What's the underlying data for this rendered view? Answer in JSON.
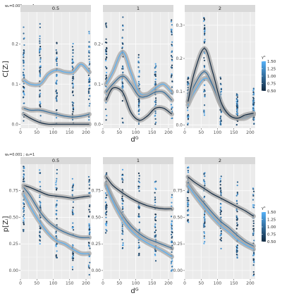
{
  "chart_data": [
    {
      "type": "scatter",
      "subtitle": "w₀=0.001 ; α₀=1",
      "ylabel": "C[Zᵢ]",
      "xlabel": "dᴳ",
      "xlim": [
        0,
        215
      ],
      "xticks": [
        0,
        50,
        100,
        150,
        200
      ],
      "legend": {
        "title": "γᴳ",
        "ticks": [
          1.5,
          1.25,
          1.0,
          0.75,
          0.5
        ],
        "range": [
          0.5,
          1.5
        ],
        "position": "right"
      },
      "panels": [
        {
          "label": "0.5",
          "ylim": [
            -0.01,
            0.28
          ],
          "yticks": [
            0.0,
            0.1,
            0.2
          ],
          "ytick_labels": [
            "0.0",
            "0.1",
            "0.2"
          ],
          "x_values": [
            10,
            60,
            110,
            160,
            210
          ],
          "scatter_ranges": [
            [
              0.0,
              0.26
            ],
            [
              0.0,
              0.26
            ],
            [
              0.0,
              0.22
            ],
            [
              0.0,
              0.21
            ],
            [
              0.0,
              0.24
            ]
          ],
          "series": [
            {
              "gamma": 1.5,
              "x": [
                10,
                30,
                60,
                85,
                110,
                135,
                160,
                185,
                210
              ],
              "y": [
                0.11,
                0.1,
                0.1,
                0.125,
                0.135,
                0.13,
                0.13,
                0.15,
                0.13
              ]
            },
            {
              "gamma": 1.0,
              "x": [
                10,
                30,
                60,
                85,
                110,
                135,
                160,
                185,
                210
              ],
              "y": [
                0.04,
                0.035,
                0.035,
                0.03,
                0.025,
                0.02,
                0.018,
                0.02,
                0.025
              ]
            },
            {
              "gamma": 0.5,
              "x": [
                10,
                30,
                60,
                85,
                110,
                135,
                160,
                185,
                210
              ],
              "y": [
                0.025,
                0.015,
                0.004,
                0.0,
                0.0,
                0.0,
                0.0,
                0.0,
                0.0
              ]
            }
          ]
        },
        {
          "label": "1",
          "ylim": [
            -0.01,
            0.28
          ],
          "yticks": [
            0.0,
            0.1,
            0.2
          ],
          "ytick_labels": [
            "0.0",
            "0.1",
            "0.2"
          ],
          "x_values": [
            10,
            60,
            110,
            160,
            210
          ],
          "scatter_ranges": [
            [
              0.0,
              0.26
            ],
            [
              0.0,
              0.27
            ],
            [
              0.0,
              0.18
            ],
            [
              0.0,
              0.17
            ],
            [
              0.0,
              0.26
            ]
          ],
          "series": [
            {
              "gamma": 1.5,
              "x": [
                10,
                30,
                60,
                85,
                110,
                135,
                160,
                185,
                210
              ],
              "y": [
                0.1,
                0.13,
                0.18,
                0.13,
                0.08,
                0.075,
                0.09,
                0.1,
                0.08
              ]
            },
            {
              "gamma": 1.0,
              "x": [
                10,
                30,
                60,
                85,
                110,
                135,
                160,
                185,
                210
              ],
              "y": [
                0.08,
                0.1,
                0.12,
                0.1,
                0.07,
                0.07,
                0.08,
                0.08,
                0.06
              ]
            },
            {
              "gamma": 0.5,
              "x": [
                10,
                30,
                60,
                85,
                110,
                135,
                160,
                185,
                210
              ],
              "y": [
                0.06,
                0.09,
                0.08,
                0.03,
                0.01,
                0.02,
                0.04,
                0.04,
                0.025
              ]
            }
          ]
        },
        {
          "label": "2",
          "ylim": [
            -0.01,
            0.34
          ],
          "yticks": [
            0.0,
            0.1,
            0.2,
            0.3
          ],
          "ytick_labels": [
            "0.0",
            "0.1",
            "0.2",
            "0.3"
          ],
          "x_values": [
            10,
            60,
            110,
            160,
            210
          ],
          "scatter_ranges": [
            [
              0.0,
              0.15
            ],
            [
              0.0,
              0.33
            ],
            [
              0.0,
              0.15
            ],
            [
              0.0,
              0.1
            ],
            [
              0.0,
              0.11
            ]
          ],
          "series": [
            {
              "gamma": 1.5,
              "x": [
                10,
                30,
                60,
                85,
                110,
                135,
                160,
                185,
                210
              ],
              "y": [
                0.06,
                0.1,
                0.14,
                0.12,
                0.06,
                0.03,
                0.02,
                0.02,
                0.035
              ]
            },
            {
              "gamma": 1.0,
              "x": [
                10,
                30,
                60,
                85,
                110,
                135,
                160,
                185,
                210
              ],
              "y": [
                0.07,
                0.12,
                0.16,
                0.12,
                0.06,
                0.03,
                0.02,
                0.025,
                0.03
              ]
            },
            {
              "gamma": 0.5,
              "x": [
                10,
                30,
                60,
                85,
                110,
                135,
                160,
                185,
                210
              ],
              "y": [
                0.07,
                0.16,
                0.23,
                0.16,
                0.07,
                0.03,
                0.02,
                0.03,
                0.035
              ]
            }
          ]
        }
      ]
    },
    {
      "type": "scatter",
      "subtitle": "w₀=0.001 ; α₀=1",
      "ylabel": "p[Zᵢ]",
      "xlabel": "dᴳ",
      "xlim": [
        0,
        215
      ],
      "xticks": [
        0,
        50,
        100,
        150,
        200
      ],
      "legend": {
        "title": "γᴳ",
        "ticks": [
          1.5,
          1.25,
          1.0,
          0.75,
          0.5
        ],
        "range": [
          0.5,
          1.5
        ],
        "position": "right"
      },
      "panels": [
        {
          "label": "0.5",
          "ylim": [
            -0.08,
            1.0
          ],
          "yticks": [
            0.0,
            0.25,
            0.5,
            0.75
          ],
          "ytick_labels": [
            "0.00",
            "0.25",
            "0.50",
            "0.75"
          ],
          "x_values": [
            10,
            60,
            110,
            160,
            210
          ],
          "scatter_ranges": [
            [
              0.35,
              0.98
            ],
            [
              0.25,
              0.98
            ],
            [
              0.1,
              0.95
            ],
            [
              0.0,
              0.92
            ],
            [
              -0.05,
              0.9
            ]
          ],
          "series": [
            {
              "gamma": 0.5,
              "x": [
                10,
                30,
                60,
                85,
                110,
                135,
                160,
                185,
                210
              ],
              "y": [
                0.8,
                0.78,
                0.74,
                0.71,
                0.7,
                0.69,
                0.68,
                0.69,
                0.7
              ]
            },
            {
              "gamma": 1.0,
              "x": [
                10,
                30,
                60,
                85,
                110,
                135,
                160,
                185,
                210
              ],
              "y": [
                0.78,
                0.7,
                0.55,
                0.46,
                0.4,
                0.36,
                0.33,
                0.31,
                0.31
              ]
            },
            {
              "gamma": 1.5,
              "x": [
                10,
                30,
                60,
                85,
                110,
                135,
                160,
                185,
                210
              ],
              "y": [
                0.72,
                0.6,
                0.45,
                0.35,
                0.28,
                0.25,
                0.2,
                0.16,
                0.16
              ]
            }
          ]
        },
        {
          "label": "1",
          "ylim": [
            -0.08,
            1.0
          ],
          "yticks": [
            0.0,
            0.25,
            0.5,
            0.75
          ],
          "ytick_labels": [
            "0.00",
            "0.25",
            "0.50",
            "0.75"
          ],
          "x_values": [
            10,
            60,
            110,
            160,
            210
          ],
          "scatter_ranges": [
            [
              0.35,
              0.98
            ],
            [
              0.2,
              0.95
            ],
            [
              0.1,
              0.92
            ],
            [
              0.05,
              0.85
            ],
            [
              -0.05,
              0.8
            ]
          ],
          "series": [
            {
              "gamma": 0.5,
              "x": [
                10,
                30,
                60,
                85,
                110,
                135,
                160,
                185,
                210
              ],
              "y": [
                0.88,
                0.8,
                0.73,
                0.68,
                0.64,
                0.61,
                0.59,
                0.58,
                0.58
              ]
            },
            {
              "gamma": 1.0,
              "x": [
                10,
                30,
                60,
                85,
                110,
                135,
                160,
                185,
                210
              ],
              "y": [
                0.82,
                0.68,
                0.52,
                0.42,
                0.35,
                0.3,
                0.27,
                0.24,
                0.21
              ]
            },
            {
              "gamma": 1.5,
              "x": [
                10,
                30,
                60,
                85,
                110,
                135,
                160,
                185,
                210
              ],
              "y": [
                0.8,
                0.65,
                0.48,
                0.38,
                0.31,
                0.26,
                0.22,
                0.18,
                0.13
              ]
            }
          ]
        },
        {
          "label": "2",
          "ylim": [
            -0.08,
            1.0
          ],
          "yticks": [
            0.0,
            0.25,
            0.5,
            0.75
          ],
          "ytick_labels": [
            "0.00",
            "0.25",
            "0.50",
            "0.75"
          ],
          "x_values": [
            10,
            60,
            110,
            160,
            210
          ],
          "scatter_ranges": [
            [
              0.45,
              0.98
            ],
            [
              0.25,
              0.95
            ],
            [
              0.15,
              0.9
            ],
            [
              0.05,
              0.85
            ],
            [
              -0.05,
              0.8
            ]
          ],
          "series": [
            {
              "gamma": 0.5,
              "x": [
                10,
                30,
                60,
                85,
                110,
                135,
                160,
                185,
                210
              ],
              "y": [
                0.88,
                0.83,
                0.77,
                0.72,
                0.68,
                0.64,
                0.6,
                0.56,
                0.51
              ]
            },
            {
              "gamma": 1.0,
              "x": [
                10,
                30,
                60,
                85,
                110,
                135,
                160,
                185,
                210
              ],
              "y": [
                0.83,
                0.74,
                0.63,
                0.54,
                0.46,
                0.4,
                0.33,
                0.27,
                0.23
              ]
            },
            {
              "gamma": 1.5,
              "x": [
                10,
                30,
                60,
                85,
                110,
                135,
                160,
                185,
                210
              ],
              "y": [
                0.8,
                0.71,
                0.59,
                0.5,
                0.42,
                0.36,
                0.29,
                0.24,
                0.2
              ]
            }
          ]
        }
      ]
    }
  ],
  "colors": {
    "panel_bg": "#ebebeb",
    "grid": "#ffffff",
    "strip_bg": "#d9d9d9",
    "ribbon": "#a6a6a6",
    "gamma_high": "#56b1f7",
    "gamma_low": "#132b43",
    "axis_text": "#4d4d4d"
  }
}
